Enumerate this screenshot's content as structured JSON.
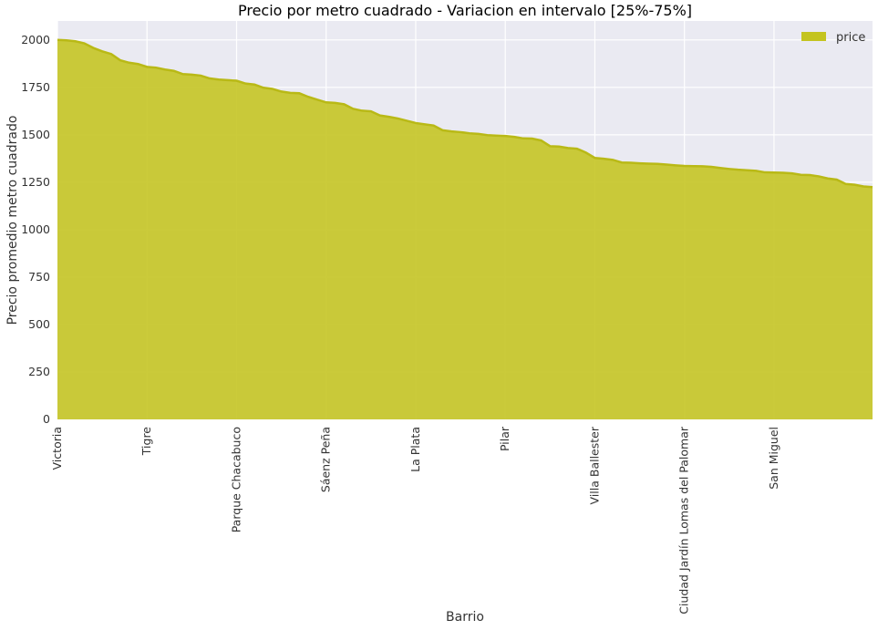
{
  "chart_data": {
    "type": "area",
    "title": "Precio por metro cuadrado - Variacion en intervalo [25%-75%]",
    "xlabel": "Barrio",
    "ylabel": "Precio promedio metro cuadrado",
    "ylim": [
      0,
      2100
    ],
    "yticks": [
      "0",
      "250",
      "500",
      "750",
      "1000",
      "1250",
      "1500",
      "1750",
      "2000"
    ],
    "xtick_labels": [
      "Victoria",
      "Tigre",
      "Parque Chacabuco",
      "Sáenz Peña",
      "La Plata",
      "Pilar",
      "Villa Ballester",
      "Ciudad Jardín Lomas del Palomar",
      "San Miguel"
    ],
    "grid": true,
    "legend_position": "top-right",
    "series": [
      {
        "name": "price",
        "color": "#c4c41f",
        "values": [
          2000,
          1998,
          1993,
          1982,
          1958,
          1940,
          1926,
          1893,
          1880,
          1873,
          1858,
          1854,
          1844,
          1837,
          1820,
          1817,
          1812,
          1797,
          1791,
          1788,
          1785,
          1770,
          1765,
          1748,
          1742,
          1728,
          1721,
          1719,
          1700,
          1685,
          1671,
          1668,
          1661,
          1637,
          1627,
          1624,
          1602,
          1595,
          1586,
          1574,
          1562,
          1555,
          1549,
          1524,
          1518,
          1514,
          1508,
          1505,
          1498,
          1496,
          1494,
          1489,
          1481,
          1480,
          1470,
          1440,
          1438,
          1430,
          1427,
          1406,
          1378,
          1374,
          1368,
          1354,
          1353,
          1350,
          1348,
          1347,
          1343,
          1339,
          1336,
          1335,
          1334,
          1331,
          1325,
          1320,
          1316,
          1313,
          1310,
          1302,
          1301,
          1300,
          1297,
          1289,
          1288,
          1281,
          1270,
          1264,
          1241,
          1237,
          1228,
          1224
        ]
      }
    ]
  }
}
